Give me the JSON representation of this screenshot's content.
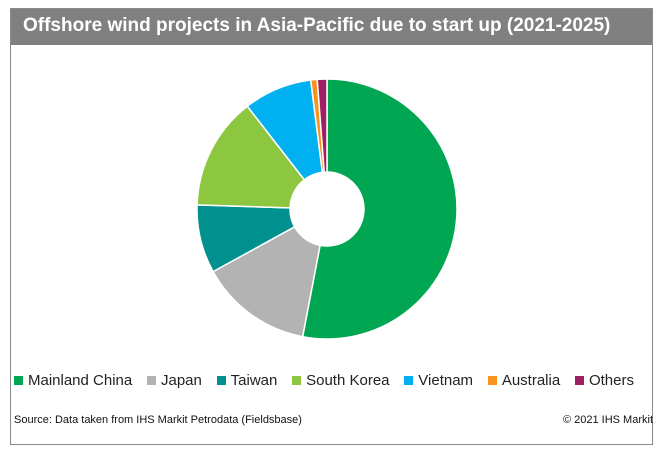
{
  "title": "Offshore wind projects in Asia-Pacific due to start up (2021-2025)",
  "source": "Source: Data taken from IHS Markit Petrodata (Fieldsbase)",
  "copyright": "© 2021 IHS Markit",
  "chart_data": {
    "type": "pie",
    "donut": true,
    "legend_position": "bottom",
    "categories": [
      "Mainland China",
      "Japan",
      "Taiwan",
      "South Korea",
      "Vietnam",
      "Australia",
      "Others"
    ],
    "values": [
      53,
      14,
      8.5,
      14,
      8.5,
      0.8,
      1.2
    ],
    "colors": [
      "#00a651",
      "#b3b3b3",
      "#00918f",
      "#8dc63f",
      "#00b0f0",
      "#f7941d",
      "#9e1f63"
    ]
  }
}
